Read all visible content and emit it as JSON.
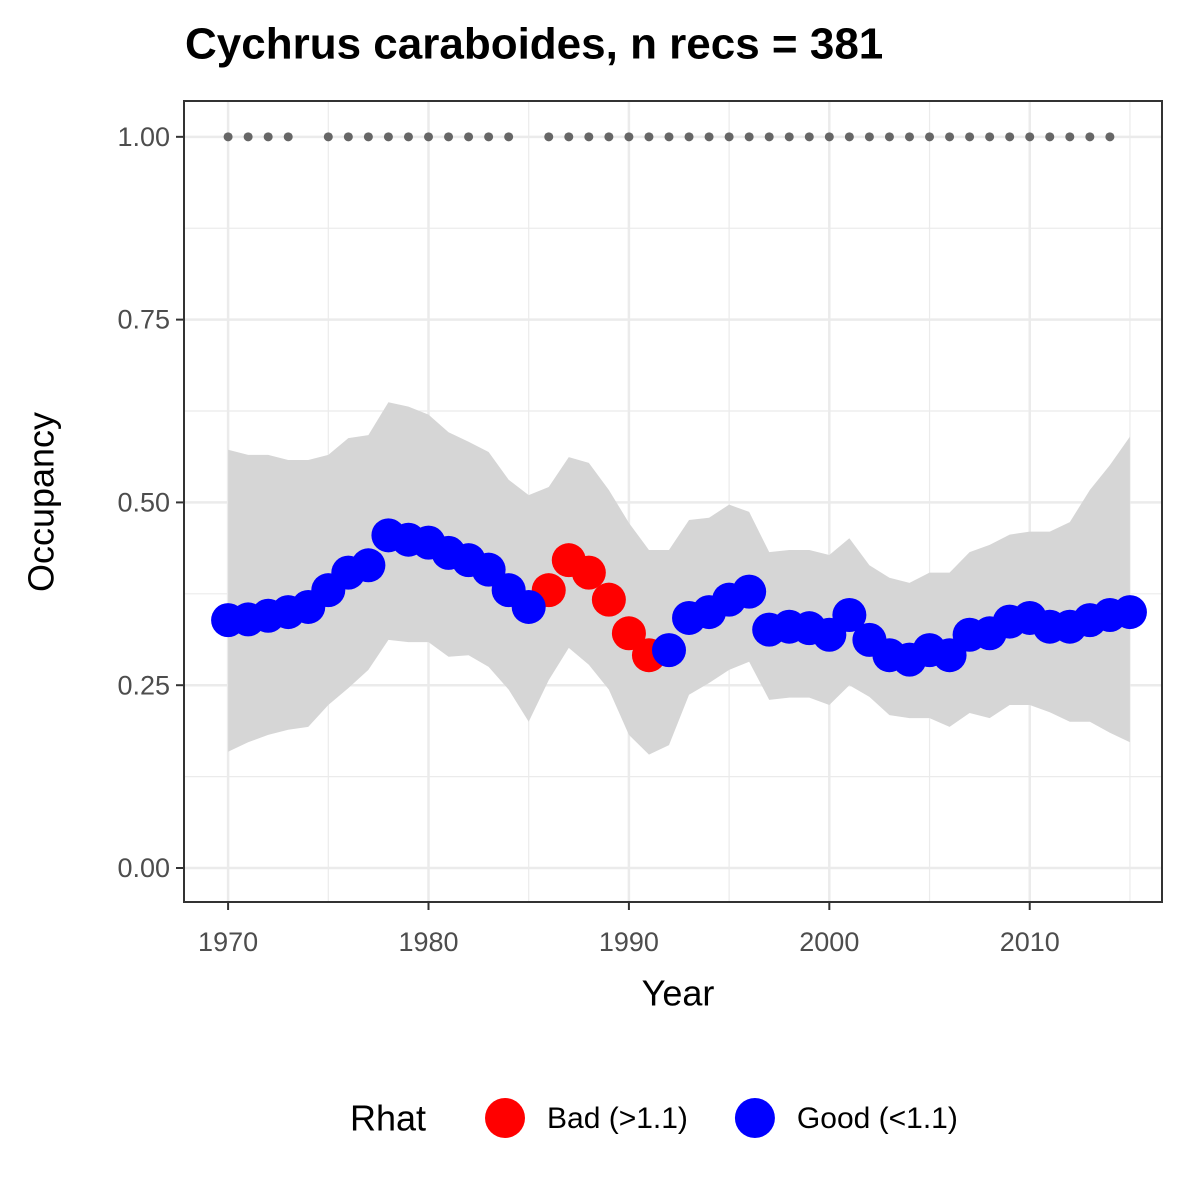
{
  "chart_data": {
    "type": "scatter",
    "title": "Cychrus caraboides, n recs = 381",
    "x_label": "Year",
    "y_label": "Occupancy",
    "x": [
      1970,
      1971,
      1972,
      1973,
      1974,
      1975,
      1976,
      1977,
      1978,
      1979,
      1980,
      1981,
      1982,
      1983,
      1984,
      1985,
      1986,
      1987,
      1988,
      1989,
      1990,
      1991,
      1992,
      1993,
      1994,
      1995,
      1996,
      1997,
      1998,
      1999,
      2000,
      2001,
      2002,
      2003,
      2004,
      2005,
      2006,
      2007,
      2008,
      2009,
      2010,
      2011,
      2012,
      2013,
      2014,
      2015
    ],
    "series": [
      {
        "name": "Bad (>1.1)",
        "color": "#ff0000",
        "values": [
          null,
          null,
          null,
          null,
          null,
          null,
          null,
          null,
          null,
          null,
          null,
          null,
          null,
          null,
          null,
          null,
          0.38,
          0.421,
          0.404,
          0.367,
          0.321,
          0.291,
          null,
          null,
          null,
          null,
          null,
          null,
          null,
          null,
          null,
          null,
          null,
          null,
          null,
          null,
          null,
          null,
          null,
          null,
          null,
          null,
          null,
          null,
          null,
          null
        ]
      },
      {
        "name": "Good (<1.1)",
        "color": "#0000ff",
        "values": [
          0.339,
          0.34,
          0.345,
          0.35,
          0.357,
          0.38,
          0.404,
          0.414,
          0.455,
          0.449,
          0.445,
          0.431,
          0.421,
          0.408,
          0.38,
          0.357,
          null,
          null,
          null,
          null,
          null,
          null,
          0.298,
          0.342,
          0.35,
          0.367,
          0.378,
          0.326,
          0.33,
          0.328,
          0.319,
          0.346,
          0.312,
          0.291,
          0.285,
          0.298,
          0.291,
          0.319,
          0.321,
          0.337,
          0.342,
          0.33,
          0.33,
          0.339,
          0.346,
          0.35
        ]
      }
    ],
    "band": {
      "color": "#d6d6d6",
      "upper": [
        0.572,
        0.565,
        0.565,
        0.558,
        0.558,
        0.565,
        0.588,
        0.592,
        0.637,
        0.631,
        0.62,
        0.596,
        0.583,
        0.569,
        0.531,
        0.51,
        0.521,
        0.562,
        0.554,
        0.517,
        0.472,
        0.435,
        0.435,
        0.476,
        0.479,
        0.497,
        0.487,
        0.432,
        0.435,
        0.435,
        0.428,
        0.451,
        0.414,
        0.397,
        0.39,
        0.404,
        0.404,
        0.432,
        0.442,
        0.456,
        0.46,
        0.46,
        0.473,
        0.517,
        0.551,
        0.59
      ],
      "lower": [
        0.159,
        0.172,
        0.182,
        0.189,
        0.193,
        0.223,
        0.246,
        0.271,
        0.312,
        0.309,
        0.309,
        0.289,
        0.291,
        0.275,
        0.244,
        0.2,
        0.257,
        0.301,
        0.278,
        0.244,
        0.182,
        0.155,
        0.168,
        0.237,
        0.253,
        0.271,
        0.282,
        0.23,
        0.233,
        0.233,
        0.223,
        0.25,
        0.234,
        0.209,
        0.205,
        0.205,
        0.193,
        0.212,
        0.205,
        0.223,
        0.223,
        0.213,
        0.2,
        0.2,
        0.185,
        0.172
      ]
    },
    "records": {
      "color": "#666666",
      "x": [
        1970,
        1971,
        1972,
        1973,
        1975,
        1976,
        1977,
        1978,
        1979,
        1980,
        1981,
        1982,
        1983,
        1984,
        1986,
        1987,
        1988,
        1989,
        1990,
        1991,
        1992,
        1993,
        1994,
        1995,
        1996,
        1997,
        1998,
        1999,
        2000,
        2001,
        2002,
        2003,
        2004,
        2005,
        2006,
        2007,
        2008,
        2009,
        2010,
        2011,
        2012,
        2013,
        2014
      ],
      "values": [
        1,
        1,
        1,
        1,
        1,
        1,
        1,
        1,
        1,
        1,
        1,
        1,
        1,
        1,
        1,
        1,
        1,
        1,
        1,
        1,
        1,
        1,
        1,
        1,
        1,
        1,
        1,
        1,
        1,
        1,
        1,
        1,
        1,
        1,
        1,
        1,
        1,
        1,
        1,
        1,
        1,
        1,
        1
      ]
    },
    "xlim": [
      1967.8,
      2016.6
    ],
    "ylim": [
      -0.0465,
      1.049
    ],
    "xticks": [
      1970,
      1980,
      1990,
      2000,
      2010
    ],
    "yticks": [
      {
        "value": 0,
        "label": "0.00"
      },
      {
        "value": 0.25,
        "label": "0.25"
      },
      {
        "value": 0.5,
        "label": "0.50"
      },
      {
        "value": 0.75,
        "label": "0.75"
      },
      {
        "value": 1,
        "label": "1.00"
      }
    ],
    "x_minor_ticks": [
      1975,
      1985,
      1995,
      2005,
      2015
    ],
    "y_minor_ticks": [
      0.125,
      0.375,
      0.625,
      0.875
    ],
    "grid": true,
    "legend": {
      "title": "Rhat",
      "position": "bottom"
    }
  }
}
